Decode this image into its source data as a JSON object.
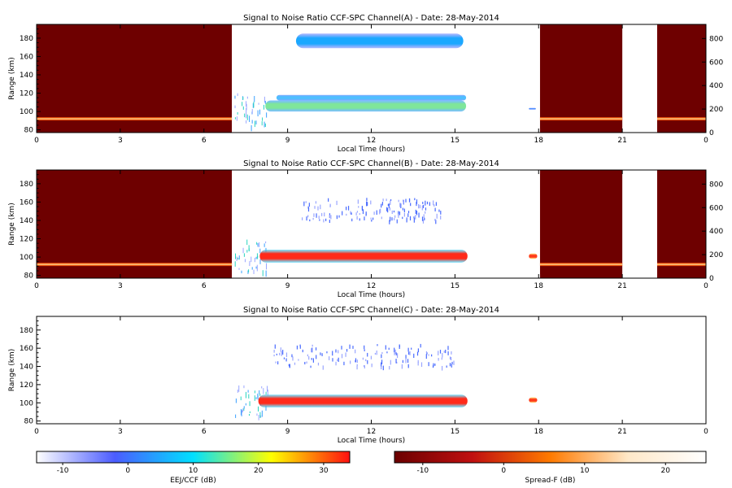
{
  "chart_data": [
    {
      "type": "heatmap",
      "title": "Signal to Noise Ratio CCF-SPC Channel(A) - Date: 28-May-2014",
      "xlabel": "Local Time (hours)",
      "ylabel": "Range (km)",
      "xlim": [
        0,
        24
      ],
      "ylim": [
        77,
        195
      ],
      "y2lim": [
        0,
        920
      ],
      "xticks": [
        "0",
        "3",
        "6",
        "9",
        "12",
        "15",
        "18",
        "21",
        "0"
      ],
      "yticks": [
        80,
        100,
        120,
        140,
        160,
        180
      ],
      "y2ticks": [
        0,
        200,
        400,
        600,
        800
      ],
      "spreadf_blocks": [
        [
          0,
          7.0
        ],
        [
          18.05,
          21.0
        ],
        [
          22.25,
          24
        ]
      ],
      "spreadf_line_y": 92,
      "eej_blobs": [
        {
          "x0": 8.2,
          "x1": 15.4,
          "yc": 106,
          "h": 12,
          "core": "#7fe69a",
          "edge": "#2f9bff"
        },
        {
          "x0": 8.6,
          "x1": 15.4,
          "yc": 115,
          "h": 6,
          "core": "#4fbfff",
          "edge": "#3b7cff"
        },
        {
          "x0": 9.3,
          "x1": 15.3,
          "yc": 177,
          "h": 16,
          "core": "#1aa8ff",
          "edge": "#7d8dff"
        },
        {
          "x0": 17.65,
          "x1": 17.9,
          "yc": 103,
          "h": 2,
          "core": "#4f8fff",
          "edge": "#9aa2ff"
        }
      ]
    },
    {
      "type": "heatmap",
      "title": "Signal to Noise Ratio CCF-SPC Channel(B) - Date: 28-May-2014",
      "xlabel": "Local Time (hours)",
      "ylabel": "Range (km)",
      "xlim": [
        0,
        24
      ],
      "ylim": [
        77,
        195
      ],
      "y2lim": [
        0,
        920
      ],
      "xticks": [
        "0",
        "3",
        "6",
        "9",
        "12",
        "15",
        "18",
        "21",
        "0"
      ],
      "yticks": [
        80,
        100,
        120,
        140,
        160,
        180
      ],
      "y2ticks": [
        0,
        200,
        400,
        600,
        800
      ],
      "spreadf_blocks": [
        [
          0,
          7.0
        ],
        [
          18.05,
          21.0
        ],
        [
          22.25,
          24
        ]
      ],
      "spreadf_line_y": 92,
      "eej_blobs": [
        {
          "x0": 8.0,
          "x1": 15.45,
          "yc": 101,
          "h": 14,
          "core": "#ff2a1a",
          "edge": "#29d3ff"
        },
        {
          "x0": 17.65,
          "x1": 17.95,
          "yc": 101,
          "h": 6,
          "core": "#ff3a1a",
          "edge": "#ffe14a"
        }
      ],
      "scatter_region": [
        9.5,
        14.5,
        140,
        165
      ]
    },
    {
      "type": "heatmap",
      "title": "Signal to Noise Ratio CCF-SPC Channel(C) - Date: 28-May-2014",
      "xlabel": "Local Time (hours)",
      "ylabel": "Range (km)",
      "xlim": [
        0,
        24
      ],
      "ylim": [
        77,
        195
      ],
      "xticks": [
        "0",
        "3",
        "6",
        "9",
        "12",
        "15",
        "18",
        "21",
        "0"
      ],
      "yticks": [
        80,
        100,
        120,
        140,
        160,
        180
      ],
      "spreadf_blocks": [],
      "eej_blobs": [
        {
          "x0": 7.95,
          "x1": 15.45,
          "yc": 102,
          "h": 14,
          "core": "#ff2a1a",
          "edge": "#29d3ff"
        },
        {
          "x0": 17.65,
          "x1": 17.95,
          "yc": 103,
          "h": 6,
          "core": "#ff3a1a",
          "edge": "#ffe14a"
        }
      ],
      "scatter_region": [
        8.5,
        15.0,
        140,
        165
      ]
    }
  ],
  "colorbars": [
    {
      "label": "EEJ/CCF (dB)",
      "range": [
        -14,
        34
      ],
      "ticks": [
        "-10",
        "0",
        "10",
        "20",
        "30"
      ],
      "tick_values": [
        -10,
        0,
        10,
        20,
        30
      ],
      "stops": [
        "#ffffff",
        "#4b5cff",
        "#00e0ff",
        "#ffff00",
        "#ff1010"
      ]
    },
    {
      "label": "Spread-F (dB)",
      "range": [
        -13.5,
        25
      ],
      "ticks": [
        "-10",
        "0",
        "10",
        "20"
      ],
      "tick_values": [
        -10,
        0,
        10,
        20
      ],
      "stops": [
        "#6b0000",
        "#c01010",
        "#ff7a00",
        "#ffe8c8",
        "#ffffff"
      ]
    }
  ]
}
